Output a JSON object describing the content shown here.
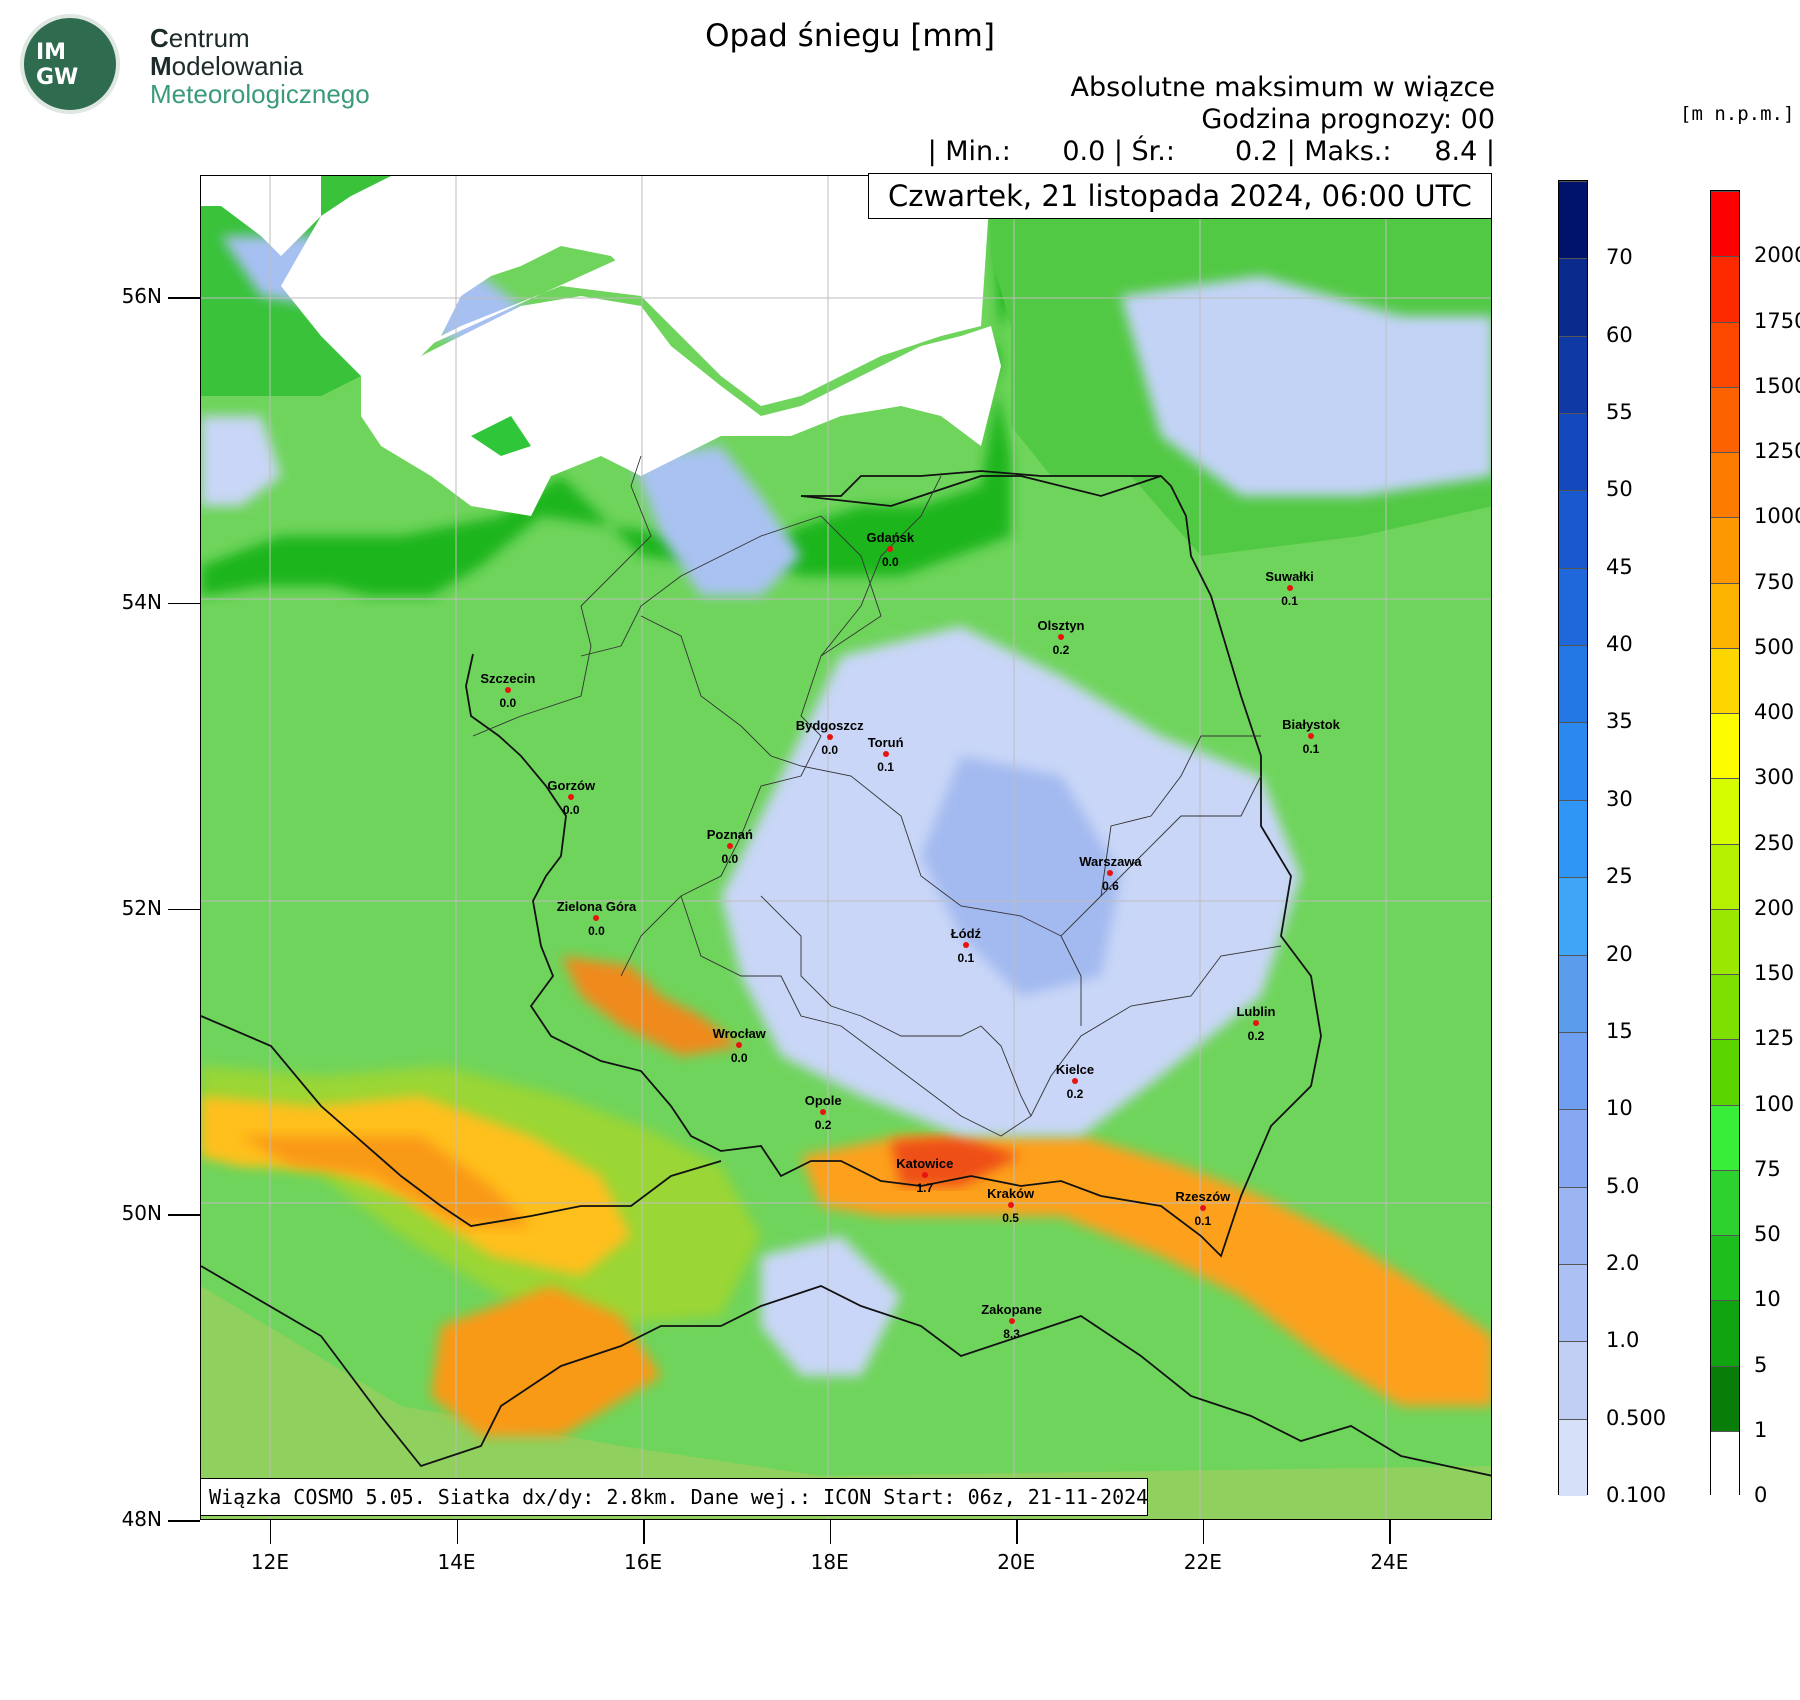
{
  "logo": {
    "emblem_text": "IM GW",
    "line1_initial": "C",
    "line1_rest": "entrum",
    "line2_initial": "M",
    "line2_rest": "odelowania",
    "line3_initial": "M",
    "line3_rest": "eteorologicznego"
  },
  "title": "Opad śniegu [mm]",
  "subtitle": {
    "line1": "Absolutne maksimum w wiązce",
    "line2": "Godzina prognozy: 00",
    "stats": "| Min.:      0.0 | Śr.:       0.2 | Maks.:     8.4 |"
  },
  "unit_label": "[m  n.p.m.]",
  "date_label": "Czwartek, 21 listopada 2024, 06:00 UTC",
  "footer": "Wiązka COSMO 5.05. Siatka dx/dy: 2.8km. Dane wej.: ICON Start: 06z, 21-11-2024",
  "axes": {
    "lat_labels": [
      "56N",
      "54N",
      "52N",
      "50N",
      "48N"
    ],
    "lon_labels": [
      "12E",
      "14E",
      "16E",
      "18E",
      "20E",
      "22E",
      "24E"
    ],
    "lat_range": [
      48,
      56.8
    ],
    "lon_range": [
      11.25,
      25.1
    ]
  },
  "cities": [
    {
      "name": "Gdańsk",
      "value": "0.0",
      "lat": 54.35,
      "lon": 18.65
    },
    {
      "name": "Suwałki",
      "value": "0.1",
      "lat": 54.1,
      "lon": 22.93
    },
    {
      "name": "Olsztyn",
      "value": "0.2",
      "lat": 53.78,
      "lon": 20.48
    },
    {
      "name": "Szczecin",
      "value": "0.0",
      "lat": 53.43,
      "lon": 14.55
    },
    {
      "name": "Bydgoszcz",
      "value": "0.0",
      "lat": 53.12,
      "lon": 18.0
    },
    {
      "name": "Toruń",
      "value": "0.1",
      "lat": 53.01,
      "lon": 18.6
    },
    {
      "name": "Białystok",
      "value": "0.1",
      "lat": 53.13,
      "lon": 23.16
    },
    {
      "name": "Gorzów",
      "value": "0.0",
      "lat": 52.73,
      "lon": 15.23
    },
    {
      "name": "Poznań",
      "value": "0.0",
      "lat": 52.41,
      "lon": 16.93
    },
    {
      "name": "Warszawa",
      "value": "0.6",
      "lat": 52.23,
      "lon": 21.01
    },
    {
      "name": "Zielona Góra",
      "value": "0.0",
      "lat": 51.94,
      "lon": 15.5
    },
    {
      "name": "Łódź",
      "value": "0.1",
      "lat": 51.76,
      "lon": 19.46
    },
    {
      "name": "Lublin",
      "value": "0.2",
      "lat": 51.25,
      "lon": 22.57
    },
    {
      "name": "Wrocław",
      "value": "0.0",
      "lat": 51.11,
      "lon": 17.03
    },
    {
      "name": "Kielce",
      "value": "0.2",
      "lat": 50.87,
      "lon": 20.63
    },
    {
      "name": "Opole",
      "value": "0.2",
      "lat": 50.67,
      "lon": 17.93
    },
    {
      "name": "Katowice",
      "value": "1.7",
      "lat": 50.26,
      "lon": 19.02
    },
    {
      "name": "Kraków",
      "value": "0.5",
      "lat": 50.06,
      "lon": 19.94
    },
    {
      "name": "Rzeszów",
      "value": "0.1",
      "lat": 50.04,
      "lon": 22.0
    },
    {
      "name": "Zakopane",
      "value": "8.3",
      "lat": 49.3,
      "lon": 19.95
    }
  ],
  "snow_colorbar": {
    "labels": [
      "70",
      "60",
      "55",
      "50",
      "45",
      "40",
      "35",
      "30",
      "25",
      "20",
      "15",
      "10",
      "5.0",
      "2.0",
      "1.0",
      "0.500",
      "0.100"
    ],
    "colors": [
      "#00136b",
      "#0a2a8e",
      "#0f3aa6",
      "#1448bd",
      "#1a58cf",
      "#1f68db",
      "#2478e6",
      "#2a88ef",
      "#3096f5",
      "#3fa5f7",
      "#5c9cec",
      "#6e9ff0",
      "#86a8f2",
      "#9bb4f2",
      "#adc0f3",
      "#c1cff5",
      "#d6e0f8"
    ]
  },
  "terrain_colorbar": {
    "labels": [
      "2000",
      "1750",
      "1500",
      "1250",
      "1000",
      "750",
      "500",
      "400",
      "300",
      "250",
      "200",
      "150",
      "125",
      "100",
      "75",
      "50",
      "10",
      "5",
      "1",
      "0"
    ],
    "colors": [
      "#fd0000",
      "#fd2a00",
      "#fd4800",
      "#fd6200",
      "#fd7c00",
      "#fd9800",
      "#fdb400",
      "#fdd600",
      "#fdfc00",
      "#d6fc00",
      "#b4f000",
      "#9ae800",
      "#7ee000",
      "#5ad500",
      "#38ee38",
      "#2ed22e",
      "#1cbf1c",
      "#10a410",
      "#087e08",
      "#ffffff"
    ]
  }
}
